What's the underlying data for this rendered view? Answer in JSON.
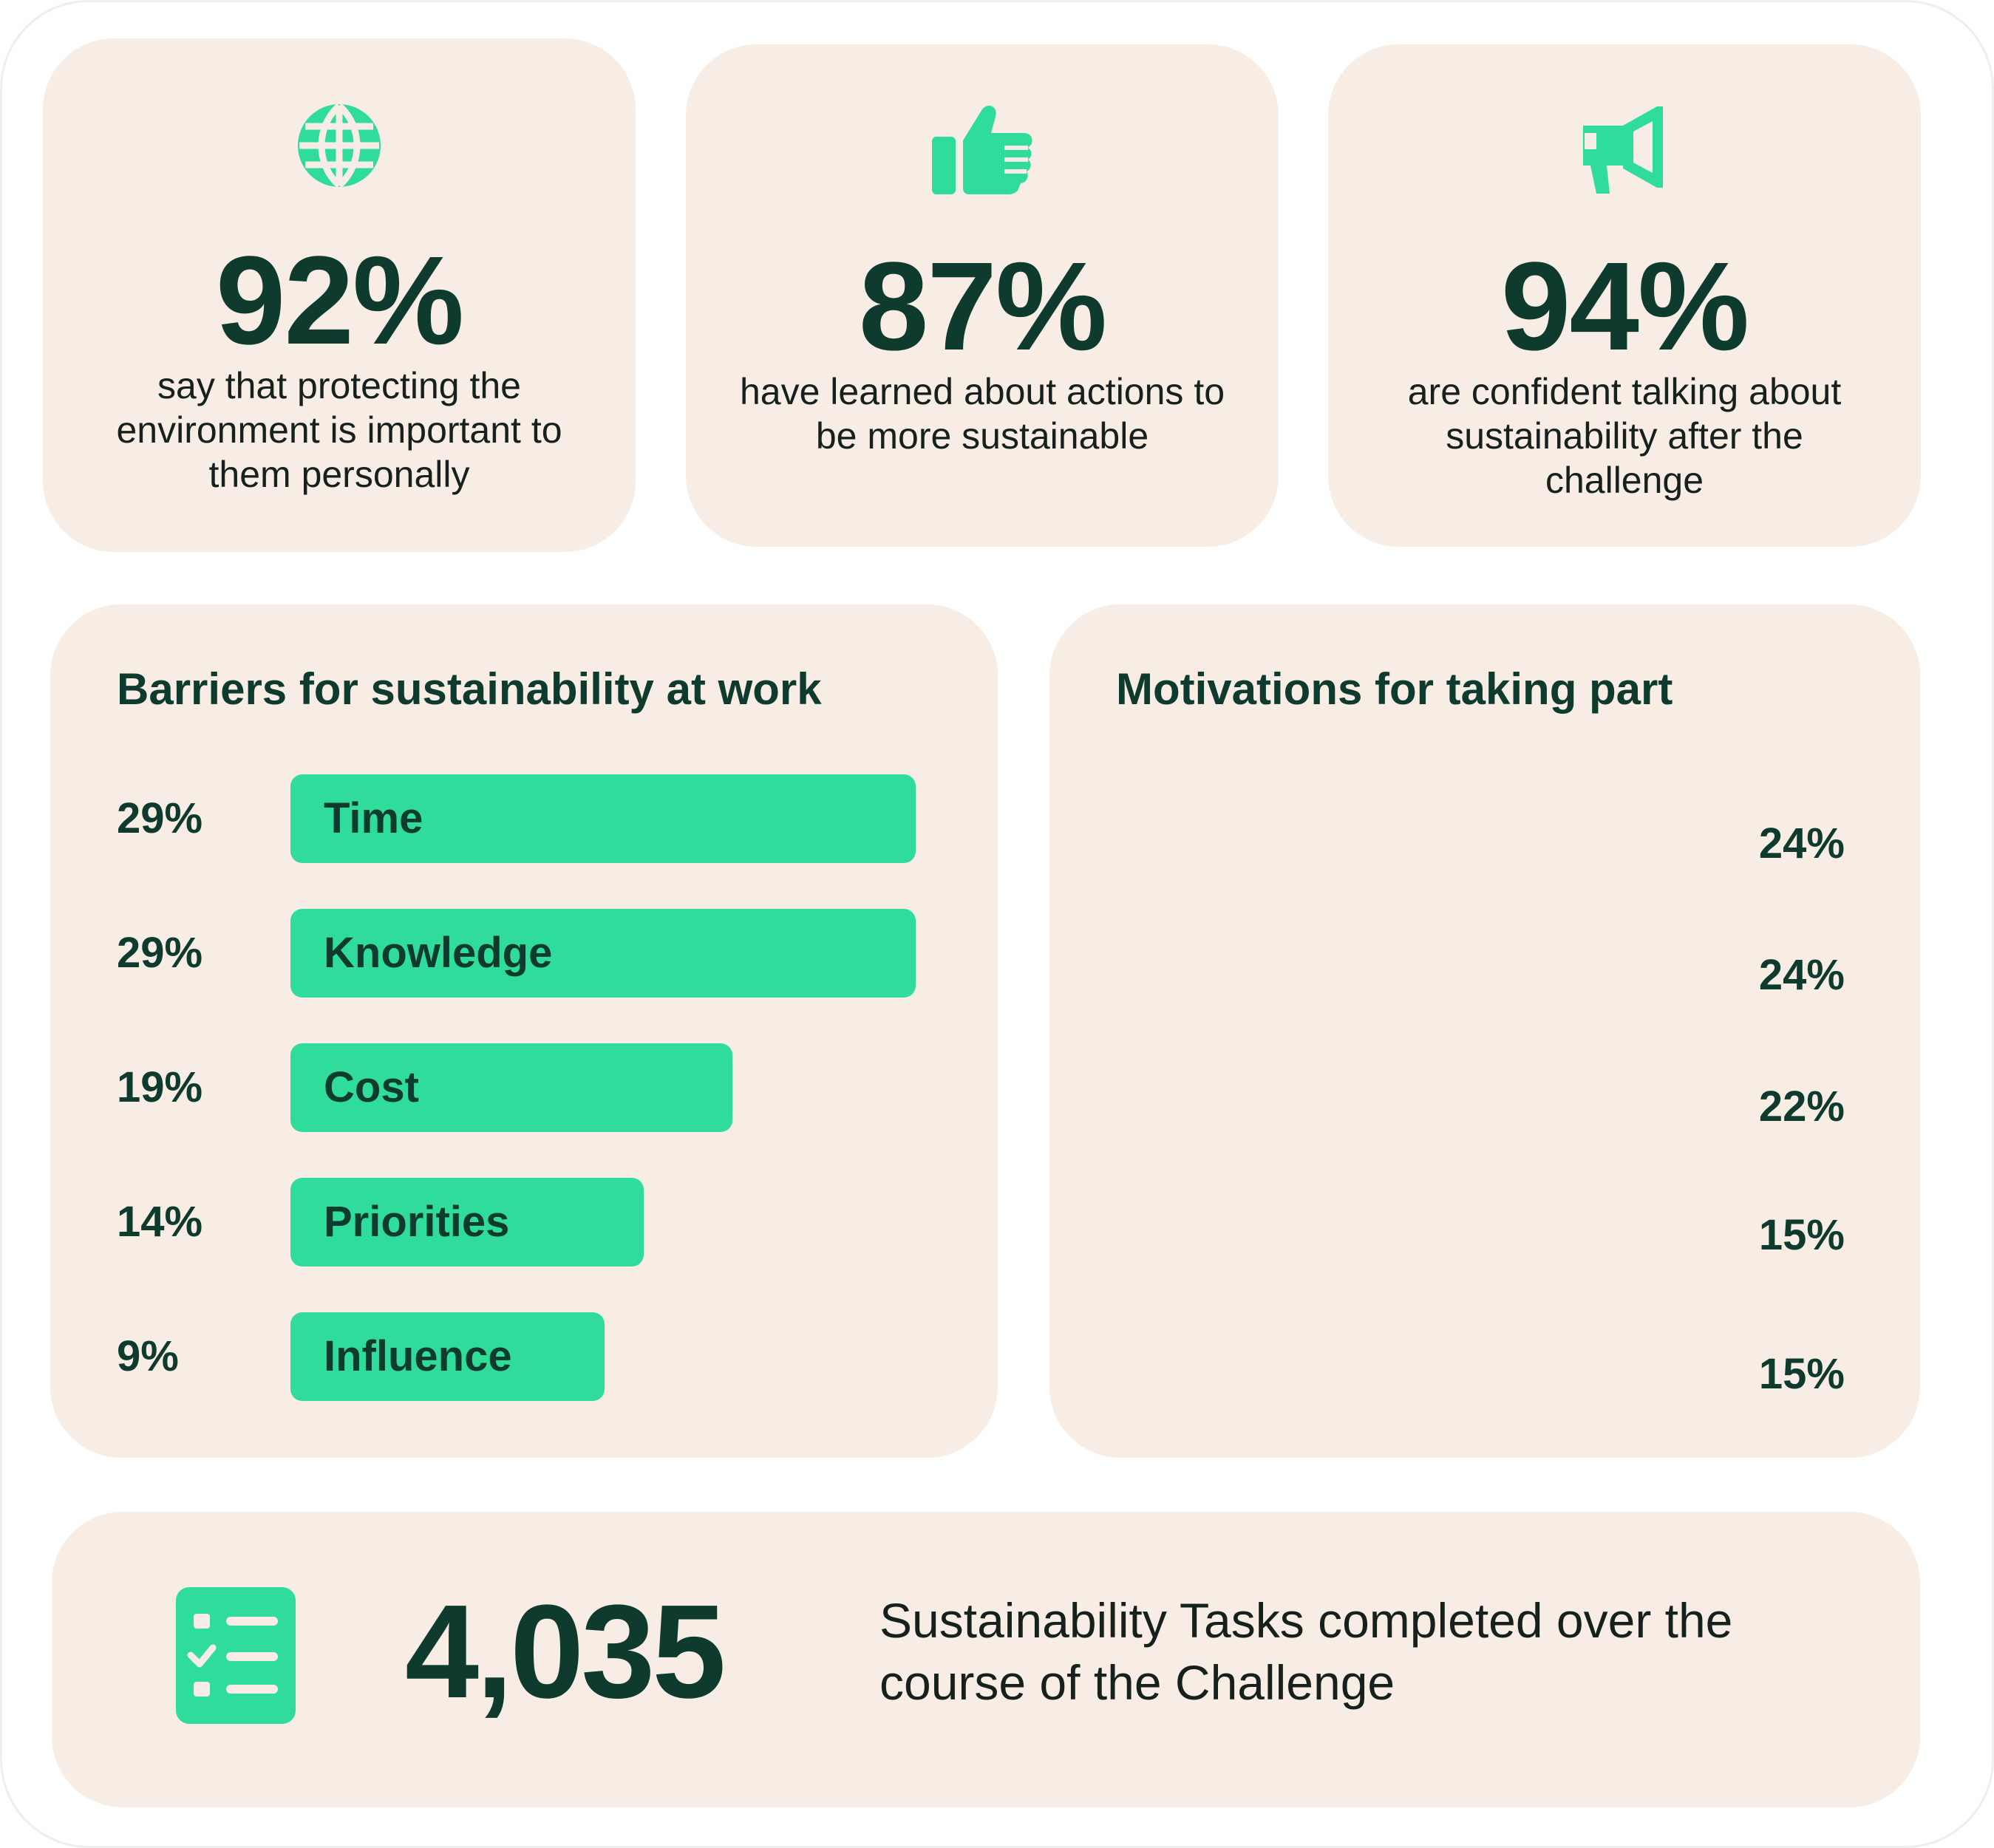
{
  "stats": [
    {
      "value": "92%",
      "text": "say that protecting the environment is important to them personally",
      "icon": "globe-icon"
    },
    {
      "value": "87%",
      "text": "have learned about actions to be more sustainable",
      "icon": "thumbs-up-icon"
    },
    {
      "value": "94%",
      "text": "are confident talking about sustainability after the challenge",
      "icon": "megaphone-icon"
    }
  ],
  "colors": {
    "accent": "#2fdc9c",
    "dark": "#0e3b2e",
    "card": "#f7ede4"
  },
  "barriers": {
    "title": "Barriers for sustainability at work",
    "items": [
      {
        "pct": "29%",
        "label": "Time"
      },
      {
        "pct": "29%",
        "label": "Knowledge"
      },
      {
        "pct": "19%",
        "label": "Cost"
      },
      {
        "pct": "14%",
        "label": "Priorities"
      },
      {
        "pct": "9%",
        "label": "Influence"
      }
    ]
  },
  "motivations": {
    "title": "Motivations for taking part",
    "items": [
      "24%",
      "24%",
      "22%",
      "15%",
      "15%"
    ]
  },
  "total": {
    "value": "4,035",
    "text": "Sustainability Tasks completed over the course of the Challenge",
    "icon": "checklist-icon"
  },
  "chart_data": [
    {
      "type": "bar",
      "title": "Barriers for sustainability at work",
      "orientation": "horizontal",
      "categories": [
        "Time",
        "Knowledge",
        "Cost",
        "Priorities",
        "Influence"
      ],
      "values": [
        29,
        29,
        19,
        14,
        9
      ],
      "unit": "%"
    },
    {
      "type": "bar",
      "title": "Motivations for taking part",
      "values": [
        24,
        24,
        22,
        15,
        15
      ],
      "unit": "%"
    }
  ]
}
